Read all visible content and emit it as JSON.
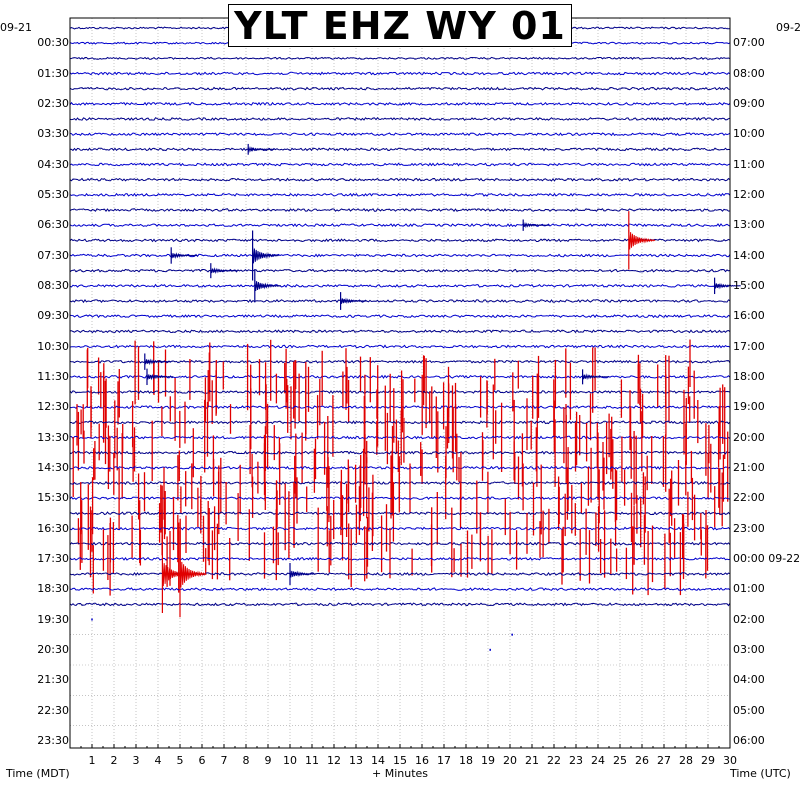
{
  "title": "YLT EHZ WY 01",
  "colors": {
    "trace_a": "#00008b",
    "trace_b": "#0000cd",
    "event": "#e00000",
    "grid": "#a0a0a0",
    "frame": "#000000"
  },
  "chart_data": {
    "type": "helicorder",
    "title": "YLT EHZ WY 01",
    "xlabel": "+ Minutes",
    "left_axis_label": "Time (MDT)",
    "right_axis_label": "Time (UTC)",
    "xlim": [
      0,
      30
    ],
    "x_ticks": [
      "1",
      "2",
      "3",
      "4",
      "5",
      "6",
      "7",
      "8",
      "9",
      "10",
      "11",
      "12",
      "13",
      "14",
      "15",
      "16",
      "17",
      "18",
      "19",
      "20",
      "21",
      "22",
      "23",
      "24",
      "25",
      "26",
      "27",
      "28",
      "29",
      "30"
    ],
    "left_date_start": "09-21",
    "right_date_start": "09-2",
    "right_date_change": "09-22",
    "left_tick_labels": [
      "00:30",
      "01:30",
      "02:30",
      "03:30",
      "04:30",
      "05:30",
      "06:30",
      "07:30",
      "08:30",
      "09:30",
      "10:30",
      "11:30",
      "12:30",
      "13:30",
      "14:30",
      "15:30",
      "16:30",
      "17:30",
      "18:30",
      "19:30",
      "20:30",
      "21:30",
      "22:30",
      "23:30"
    ],
    "right_tick_labels": [
      "07:00",
      "08:00",
      "09:00",
      "10:00",
      "11:00",
      "12:00",
      "13:00",
      "14:00",
      "15:00",
      "16:00",
      "17:00",
      "18:00",
      "19:00",
      "20:00",
      "21:00",
      "22:00",
      "23:00",
      "00:00 09-22",
      "01:00",
      "02:00",
      "03:00",
      "04:00",
      "05:00",
      "06:00"
    ],
    "rows_total": 48,
    "rows_with_trace": 39,
    "rows_per_label": 2,
    "grid": true,
    "events": [
      {
        "row": 8,
        "minute": 8.1,
        "amplitude": 0.1
      },
      {
        "row": 13,
        "minute": 20.6,
        "amplitude": 0.12
      },
      {
        "row": 14,
        "minute": 25.4,
        "amplitude": 1.8
      },
      {
        "row": 15,
        "minute": 8.3,
        "amplitude": 1.5
      },
      {
        "row": 15,
        "minute": 4.6,
        "amplitude": 0.3
      },
      {
        "row": 16,
        "minute": 6.4,
        "amplitude": 0.25
      },
      {
        "row": 17,
        "minute": 8.4,
        "amplitude": 0.9
      },
      {
        "row": 17,
        "minute": 29.3,
        "amplitude": 0.3
      },
      {
        "row": 18,
        "minute": 12.3,
        "amplitude": 0.35
      },
      {
        "row": 22,
        "minute": 3.4,
        "amplitude": 0.3
      },
      {
        "row": 23,
        "minute": 3.5,
        "amplitude": 0.3
      },
      {
        "row": 23,
        "minute": 23.3,
        "amplitude": 0.25
      },
      {
        "row": 36,
        "minute": 10.0,
        "amplitude": 0.5
      },
      {
        "row": 36,
        "minute": 4.2,
        "amplitude": 2.5
      },
      {
        "row": 36,
        "minute": 5.0,
        "amplitude": 2.8
      }
    ],
    "high_activity": {
      "rows_from": 23,
      "rows_to": 35,
      "color": "red"
    }
  }
}
